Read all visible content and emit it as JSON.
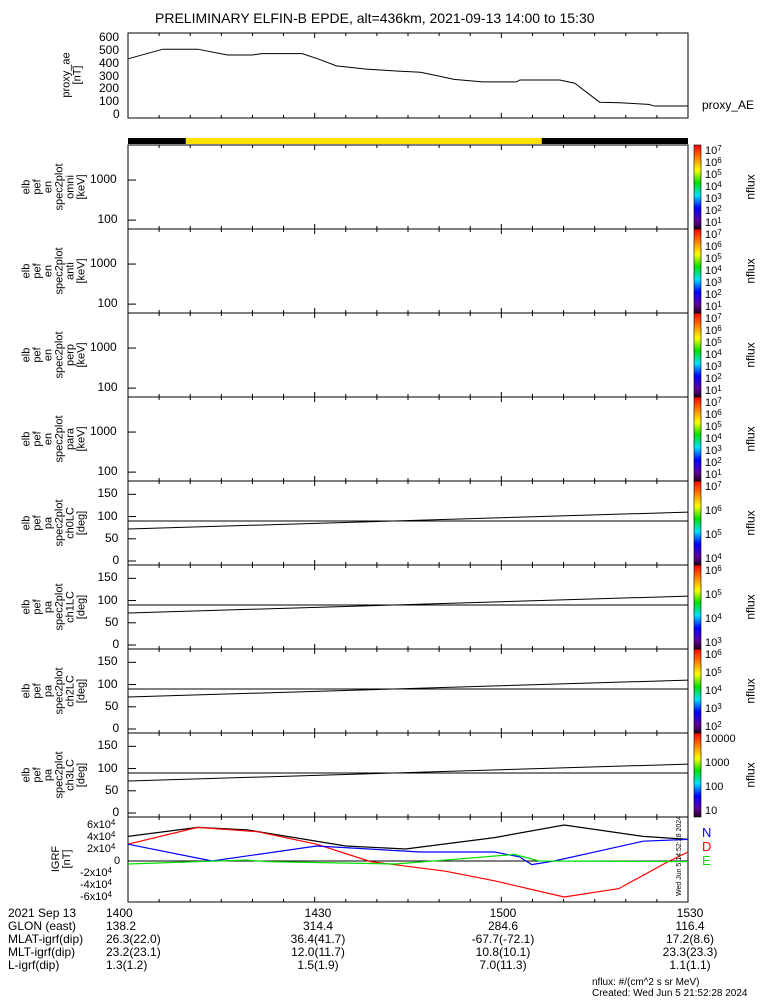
{
  "title": "PRELIMINARY ELFIN-B EPDE, alt=436km, 2021-09-13 14:00 to 15:30",
  "colors": {
    "sunlit_bar": "#ffe000",
    "shadow_bar": "#000000",
    "N": "#0000ff",
    "D": "#ff0000",
    "E": "#00e000",
    "total": "#000000"
  },
  "chart_data": [
    {
      "type": "line",
      "id": "proxy_ae",
      "ylabel": [
        "proxy_ae",
        "[nT]"
      ],
      "legend": "proxy_AE",
      "ylim": [
        0,
        600
      ],
      "yticks": [
        "0",
        "100",
        "200",
        "300",
        "400",
        "500",
        "600"
      ],
      "x_minutes_from_1400": [
        0,
        5.6,
        11.2,
        16,
        20,
        21.5,
        28,
        30.5,
        33.5,
        38.3,
        43,
        47,
        50,
        52.4,
        57,
        62.4,
        63,
        69.4,
        71.8,
        75.8,
        79,
        83.7,
        84.6,
        90
      ],
      "values": [
        430,
        505,
        505,
        460,
        460,
        470,
        470,
        430,
        375,
        350,
        335,
        325,
        295,
        270,
        250,
        250,
        265,
        265,
        240,
        92,
        88,
        75,
        62,
        62
      ]
    },
    {
      "type": "bar",
      "id": "sunlight_bar",
      "segments": [
        {
          "from": 0,
          "to": 9.3,
          "state": "shadow"
        },
        {
          "from": 9.3,
          "to": 66.5,
          "state": "sunlit"
        },
        {
          "from": 66.5,
          "to": 90,
          "state": "shadow"
        }
      ]
    },
    {
      "type": "heatmap",
      "id": "omni",
      "ylabel": [
        "elb",
        "pef",
        "en",
        "spec2plot",
        "omni",
        "[keV]"
      ],
      "yscale": "log",
      "ylim": [
        60,
        7500
      ],
      "yticks": [
        "100",
        "1000"
      ],
      "colorbar": {
        "label": "nflux",
        "ticks": [
          "10^7",
          "10^6",
          "10^5",
          "10^4",
          "10^3",
          "10^2",
          "10^1"
        ]
      }
    },
    {
      "type": "heatmap",
      "id": "anti",
      "ylabel": [
        "elb",
        "pef",
        "en",
        "spec2plot",
        "anti",
        "[keV]"
      ],
      "yscale": "log",
      "ylim": [
        60,
        7500
      ],
      "yticks": [
        "100",
        "1000"
      ],
      "colorbar": {
        "label": "nflux",
        "ticks": [
          "10^7",
          "10^6",
          "10^5",
          "10^4",
          "10^3",
          "10^2",
          "10^1"
        ]
      }
    },
    {
      "type": "heatmap",
      "id": "perp",
      "ylabel": [
        "elb",
        "pef",
        "en",
        "spec2plot",
        "perp",
        "[keV]"
      ],
      "yscale": "log",
      "ylim": [
        60,
        7500
      ],
      "yticks": [
        "100",
        "1000"
      ],
      "colorbar": {
        "label": "nflux",
        "ticks": [
          "10^7",
          "10^6",
          "10^5",
          "10^4",
          "10^3",
          "10^2",
          "10^1"
        ]
      }
    },
    {
      "type": "heatmap",
      "id": "para",
      "ylabel": [
        "elb",
        "pef",
        "en",
        "spec2plot",
        "para",
        "[keV]"
      ],
      "yscale": "log",
      "ylim": [
        60,
        7500
      ],
      "yticks": [
        "100",
        "1000"
      ],
      "colorbar": {
        "label": "nflux",
        "ticks": [
          "10^7",
          "10^6",
          "10^5",
          "10^4",
          "10^3",
          "10^2",
          "10^1"
        ]
      }
    },
    {
      "type": "heatmap",
      "id": "ch0LC",
      "ylabel": [
        "elb",
        "pef",
        "pa",
        "spec2plot",
        "ch0LC",
        "[deg]"
      ],
      "ylim": [
        0,
        180
      ],
      "yticks": [
        "0",
        "50",
        "100",
        "150"
      ],
      "lines": [
        {
          "name": "90 deg",
          "values": [
            90,
            90
          ]
        },
        {
          "name": "loss cone",
          "values": [
            72,
            110
          ]
        }
      ],
      "colorbar": {
        "label": "nflux",
        "ticks": [
          "10^7",
          "10^6",
          "10^5",
          "10^4"
        ]
      }
    },
    {
      "type": "heatmap",
      "id": "ch1LC",
      "ylabel": [
        "elb",
        "pef",
        "pa",
        "spec2plot",
        "ch1LC",
        "[deg]"
      ],
      "ylim": [
        0,
        180
      ],
      "yticks": [
        "0",
        "50",
        "100",
        "150"
      ],
      "lines": [
        {
          "name": "90 deg",
          "values": [
            90,
            90
          ]
        },
        {
          "name": "loss cone",
          "values": [
            72,
            110
          ]
        }
      ],
      "colorbar": {
        "label": "nflux",
        "ticks": [
          "10^6",
          "10^5",
          "10^4",
          "10^3"
        ]
      }
    },
    {
      "type": "heatmap",
      "id": "ch2LC",
      "ylabel": [
        "elb",
        "pef",
        "pa",
        "spec2plot",
        "ch2LC",
        "[deg]"
      ],
      "ylim": [
        0,
        180
      ],
      "yticks": [
        "0",
        "50",
        "100",
        "150"
      ],
      "lines": [
        {
          "name": "90 deg",
          "values": [
            90,
            90
          ]
        },
        {
          "name": "loss cone",
          "values": [
            72,
            110
          ]
        }
      ],
      "colorbar": {
        "label": "nflux",
        "ticks": [
          "10^6",
          "10^5",
          "10^4",
          "10^3",
          "10^2"
        ]
      }
    },
    {
      "type": "heatmap",
      "id": "ch3LC",
      "ylabel": [
        "elb",
        "pef",
        "pa",
        "spec2plot",
        "ch3LC",
        "[deg]"
      ],
      "ylim": [
        0,
        180
      ],
      "yticks": [
        "0",
        "50",
        "100",
        "150"
      ],
      "lines": [
        {
          "name": "90 deg",
          "values": [
            90,
            90
          ]
        },
        {
          "name": "loss cone",
          "values": [
            72,
            110
          ]
        }
      ],
      "colorbar": {
        "label": "nflux",
        "ticks": [
          "10000",
          "1000",
          "100",
          "10"
        ]
      }
    },
    {
      "type": "line",
      "id": "igrf",
      "ylabel": [
        "IGRF",
        "[nT]"
      ],
      "ylim": [
        -70000,
        70000
      ],
      "yticks": [
        "6x10^4",
        "4x10^4",
        "2x10^4",
        "0",
        "-2x10^4",
        "-4x10^4",
        "-6x10^4"
      ],
      "legend": [
        "N",
        "D",
        "E"
      ],
      "series": [
        {
          "name": "total",
          "x": [
            0,
            11.2,
            19.1,
            35,
            44.6,
            58.9,
            70.1,
            82.8,
            90
          ],
          "values": [
            41000,
            56000,
            52000,
            25000,
            20000,
            39000,
            60000,
            41000,
            36000
          ]
        },
        {
          "name": "D",
          "x": [
            0,
            11.2,
            20.7,
            30.3,
            39,
            51,
            58.9,
            70.1,
            78.9,
            86.8,
            90
          ],
          "values": [
            28000,
            56000,
            49000,
            28000,
            -1000,
            -17000,
            -33000,
            -60000,
            -46000,
            -1000,
            15000
          ]
        },
        {
          "name": "N",
          "x": [
            0,
            13.5,
            30.3,
            47,
            58.9,
            62.9,
            64.9,
            68.5,
            82.8,
            90
          ],
          "values": [
            28000,
            0,
            25000,
            15000,
            15000,
            7000,
            -6000,
            0,
            33000,
            36000
          ]
        },
        {
          "name": "E",
          "x": [
            0,
            11.2,
            19.1,
            22.3,
            43,
            51,
            62.1,
            66.1,
            90
          ],
          "values": [
            -5000,
            -1000,
            1600,
            -1000,
            -5000,
            1600,
            11000,
            0,
            -1000
          ]
        }
      ]
    }
  ],
  "side_stamp": "Wed Jun 5 14:52:28 2024",
  "orbit_table": {
    "rows": [
      {
        "label": "2021 Sep 13",
        "values": [
          "1400",
          "1430",
          "1500",
          "1530"
        ]
      },
      {
        "label": "GLON (east)",
        "values": [
          "138.2",
          "314.4",
          "284.6",
          "116.4"
        ]
      },
      {
        "label": "MLAT-igrf(dip)",
        "values": [
          "26.3(22.0)",
          "36.4(41.7)",
          "-67.7(-72.1)",
          "17.2(8.6)"
        ]
      },
      {
        "label": "MLT-igrf(dip)",
        "values": [
          "23.2(23.1)",
          "12.0(11.7)",
          "10.8(10.1)",
          "23.3(23.3)"
        ]
      },
      {
        "label": "L-igrf(dip)",
        "values": [
          "1.3(1.2)",
          "1.5(1.9)",
          "7.0(11.3)",
          "1.1(1.1)"
        ]
      }
    ]
  },
  "footer": {
    "units": "nflux: #/(cm^2 s sr MeV)",
    "created": "Created: Wed Jun  5 21:52:28 2024"
  }
}
